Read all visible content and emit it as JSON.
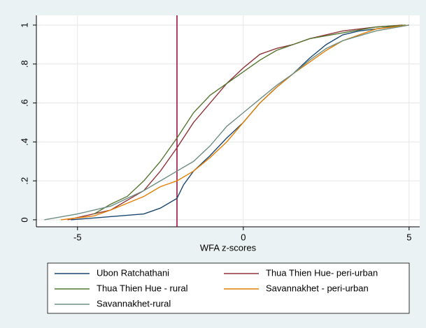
{
  "chart_data": {
    "type": "line",
    "xlabel": "WFA z-scores",
    "xlim": [
      -6.24,
      5.32
    ],
    "ylim": [
      -0.036,
      1.05
    ],
    "xticks": [
      -5,
      0,
      5
    ],
    "yticks": [
      0,
      {
        "value": 0.2,
        "label": ".2"
      },
      {
        "value": 0.4,
        "label": ".4"
      },
      {
        "value": 0.6,
        "label": ".6"
      },
      {
        "value": 0.8,
        "label": ".8"
      },
      1
    ],
    "grid": true,
    "xline": {
      "value": -2,
      "color": "#990033"
    },
    "series": [
      {
        "name": "Ubon Ratchathani",
        "color": "#1a476f",
        "x": [
          -5.2,
          -3,
          -2.5,
          -2,
          -1.8,
          -1.5,
          -1,
          -0.5,
          0,
          0.5,
          1,
          1.5,
          2,
          2.5,
          3,
          3.5,
          4,
          4.8
        ],
        "values": [
          0,
          0.03,
          0.06,
          0.11,
          0.18,
          0.25,
          0.33,
          0.42,
          0.5,
          0.6,
          0.68,
          0.75,
          0.83,
          0.9,
          0.95,
          0.97,
          0.98,
          1
        ]
      },
      {
        "name": "Thua Thien Hue- peri-urban",
        "color": "#90353b",
        "x": [
          -5.3,
          -4,
          -3,
          -2.5,
          -2,
          -1.5,
          -1,
          -0.5,
          0,
          0.5,
          1,
          1.5,
          2,
          3,
          4,
          4.8
        ],
        "values": [
          0,
          0.05,
          0.15,
          0.25,
          0.37,
          0.5,
          0.6,
          0.7,
          0.78,
          0.85,
          0.88,
          0.9,
          0.93,
          0.97,
          0.99,
          1
        ]
      },
      {
        "name": "Thua Thien Hue - rural",
        "color": "#55752f",
        "x": [
          -4.5,
          -4,
          -3.5,
          -3,
          -2.5,
          -2,
          -1.5,
          -1,
          -0.5,
          0,
          0.5,
          1,
          1.5,
          2,
          3,
          4,
          4.9
        ],
        "values": [
          0.03,
          0.08,
          0.12,
          0.2,
          0.3,
          0.42,
          0.55,
          0.64,
          0.7,
          0.76,
          0.82,
          0.87,
          0.9,
          0.93,
          0.96,
          0.99,
          1
        ]
      },
      {
        "name": "Savannakhet - peri-urban",
        "color": "#e37e00",
        "x": [
          -5.5,
          -4.5,
          -4,
          -3,
          -2.5,
          -2,
          -1.5,
          -1,
          -0.5,
          0,
          0.5,
          1,
          1.5,
          2,
          2.5,
          3,
          3.5,
          4,
          5
        ],
        "values": [
          0,
          0.02,
          0.05,
          0.12,
          0.17,
          0.2,
          0.25,
          0.32,
          0.4,
          0.5,
          0.6,
          0.68,
          0.75,
          0.81,
          0.87,
          0.92,
          0.95,
          0.98,
          1
        ]
      },
      {
        "name": "Savannakhet-rural",
        "color": "#6e8e84",
        "x": [
          -6,
          -5,
          -4,
          -3,
          -2.5,
          -2,
          -1.5,
          -1,
          -0.5,
          0,
          0.5,
          1,
          1.5,
          2,
          2.5,
          3,
          4,
          5
        ],
        "values": [
          0,
          0.03,
          0.07,
          0.15,
          0.2,
          0.25,
          0.3,
          0.38,
          0.48,
          0.55,
          0.62,
          0.69,
          0.75,
          0.82,
          0.88,
          0.92,
          0.97,
          1
        ]
      }
    ]
  }
}
